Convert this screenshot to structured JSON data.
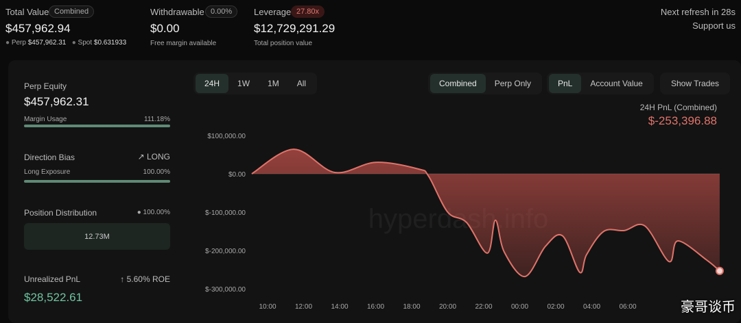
{
  "header": {
    "stats": [
      {
        "label": "Total Value",
        "badge": "Combined",
        "value": "$457,962.94"
      },
      {
        "label": "Withdrawable",
        "badge": "0.00%",
        "value": "$0.00",
        "note": "Free margin available"
      },
      {
        "label": "Leverage",
        "badge": "27.80x",
        "value": "$12,729,291.29",
        "note": "Total position value"
      }
    ],
    "total_breakdown": [
      {
        "label": "Perp",
        "value": "$457,962.31"
      },
      {
        "label": "Spot",
        "value": "$0.631933"
      }
    ],
    "refresh": "Next refresh in 28s",
    "support": "Support us"
  },
  "sidebar": {
    "perp_equity": {
      "label": "Perp Equity",
      "value": "$457,962.31",
      "sub_label": "Margin Usage",
      "sub_value": "111.18%"
    },
    "direction": {
      "label": "Direction Bias",
      "value": "LONG",
      "sub_label": "Long Exposure",
      "sub_value": "100.00%"
    },
    "distribution": {
      "label": "Position Distribution",
      "value": "100.00%",
      "bar": "12.73M"
    },
    "unrealized": {
      "label": "Unrealized PnL",
      "roe": "5.60% ROE",
      "value": "$28,522.61"
    }
  },
  "toolbar": {
    "ranges": [
      "24H",
      "1W",
      "1M",
      "All"
    ],
    "modes": [
      "Combined",
      "Perp Only"
    ],
    "metrics": [
      "PnL",
      "Account Value"
    ],
    "trades": "Show Trades"
  },
  "watermarks": [
    "hyperdash.info",
    "豪哥谈币"
  ],
  "chart_data": {
    "type": "area",
    "title": "24H PnL (Combined)",
    "summary": "$-253,396.88",
    "color": "#e0736a",
    "x": [
      9.12,
      11.45,
      13.73,
      16.0,
      18.38,
      18.95,
      20.0,
      21.05,
      22.2,
      22.65,
      23.14,
      24.29,
      25.43,
      26.38,
      27.33,
      27.71,
      28.67,
      29.81,
      30.95,
      32.29,
      32.78,
      34.38,
      35.1
    ],
    "values": [
      0,
      64000,
      3600,
      30000,
      12500,
      -7000,
      -100000,
      -127000,
      -207000,
      -121000,
      -204000,
      -268000,
      -189000,
      -162000,
      -257000,
      -211000,
      -150000,
      -148000,
      -136000,
      -229000,
      -175000,
      -225000,
      -253396.88
    ],
    "xlim": [
      9.12,
      35.1
    ],
    "ylim": [
      -320000,
      115000
    ],
    "xticks": [
      {
        "value": 10,
        "label": "10:00"
      },
      {
        "value": 12,
        "label": "12:00"
      },
      {
        "value": 14,
        "label": "14:00"
      },
      {
        "value": 16,
        "label": "16:00"
      },
      {
        "value": 18,
        "label": "18:00"
      },
      {
        "value": 20,
        "label": "20:00"
      },
      {
        "value": 22,
        "label": "22:00"
      },
      {
        "value": 24,
        "label": "00:00"
      },
      {
        "value": 26,
        "label": "02:00"
      },
      {
        "value": 28,
        "label": "04:00"
      },
      {
        "value": 30,
        "label": "06:00"
      }
    ],
    "yticks": [
      {
        "value": 100000,
        "label": "$100,000.00"
      },
      {
        "value": 0,
        "label": "$0.00"
      },
      {
        "value": -100000,
        "label": "$-100,000.00"
      },
      {
        "value": -200000,
        "label": "$-200,000.00"
      },
      {
        "value": -300000,
        "label": "$-300,000.00"
      }
    ]
  }
}
